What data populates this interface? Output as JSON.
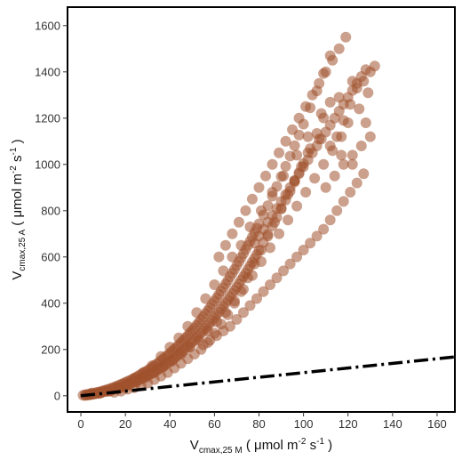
{
  "chart_data": {
    "type": "scatter",
    "xlabel": {
      "main": "V",
      "sub": "cmax,25 M",
      "open": " ( μmol m",
      "exp1": "-2",
      "mid": " s",
      "exp2": "-1",
      "close": " )"
    },
    "ylabel": {
      "main": "V",
      "sub": "cmax,25 A",
      "open": " ( μmol m",
      "exp1": "-2",
      "mid": " s",
      "exp2": "-1",
      "close": " )"
    },
    "xlim": [
      -6,
      168
    ],
    "ylim": [
      -70,
      1680
    ],
    "xticks": [
      "0",
      "20",
      "40",
      "60",
      "80",
      "100",
      "120",
      "140",
      "160"
    ],
    "yticks": [
      "0",
      "200",
      "400",
      "600",
      "800",
      "1000",
      "1200",
      "1400",
      "1600"
    ],
    "grid": false,
    "legend": "none",
    "point_color": "#a0522d",
    "point_opacity": 0.55,
    "reference_line": {
      "style": "dash-dot",
      "color": "#000000",
      "x": [
        0,
        168
      ],
      "y": [
        0,
        168
      ]
    },
    "points": [
      [
        1,
        2
      ],
      [
        2,
        1
      ],
      [
        2,
        5
      ],
      [
        3,
        6
      ],
      [
        3,
        3
      ],
      [
        4,
        8
      ],
      [
        4,
        4
      ],
      [
        5,
        9
      ],
      [
        5,
        12
      ],
      [
        6,
        11
      ],
      [
        6,
        7
      ],
      [
        7,
        14
      ],
      [
        7,
        10
      ],
      [
        8,
        16
      ],
      [
        8,
        12
      ],
      [
        9,
        18
      ],
      [
        9,
        13
      ],
      [
        10,
        22
      ],
      [
        10,
        17
      ],
      [
        11,
        24
      ],
      [
        11,
        18
      ],
      [
        12,
        27
      ],
      [
        12,
        20
      ],
      [
        13,
        30
      ],
      [
        13,
        22
      ],
      [
        14,
        34
      ],
      [
        14,
        25
      ],
      [
        15,
        37
      ],
      [
        15,
        28
      ],
      [
        16,
        41
      ],
      [
        16,
        31
      ],
      [
        17,
        45
      ],
      [
        17,
        34
      ],
      [
        18,
        49
      ],
      [
        18,
        37
      ],
      [
        19,
        53
      ],
      [
        19,
        40
      ],
      [
        20,
        58
      ],
      [
        20,
        44
      ],
      [
        21,
        62
      ],
      [
        21,
        48
      ],
      [
        22,
        66
      ],
      [
        22,
        52
      ],
      [
        23,
        71
      ],
      [
        23,
        56
      ],
      [
        24,
        76
      ],
      [
        24,
        60
      ],
      [
        25,
        81
      ],
      [
        25,
        64
      ],
      [
        26,
        87
      ],
      [
        26,
        68
      ],
      [
        27,
        92
      ],
      [
        27,
        72
      ],
      [
        28,
        98
      ],
      [
        28,
        77
      ],
      [
        29,
        104
      ],
      [
        29,
        82
      ],
      [
        30,
        110
      ],
      [
        30,
        87
      ],
      [
        31,
        116
      ],
      [
        31,
        92
      ],
      [
        32,
        123
      ],
      [
        32,
        97
      ],
      [
        33,
        130
      ],
      [
        33,
        103
      ],
      [
        34,
        137
      ],
      [
        34,
        109
      ],
      [
        35,
        144
      ],
      [
        35,
        115
      ],
      [
        36,
        152
      ],
      [
        36,
        121
      ],
      [
        37,
        160
      ],
      [
        37,
        127
      ],
      [
        38,
        168
      ],
      [
        38,
        134
      ],
      [
        39,
        176
      ],
      [
        39,
        141
      ],
      [
        40,
        184
      ],
      [
        40,
        148
      ],
      [
        41,
        193
      ],
      [
        41,
        155
      ],
      [
        42,
        202
      ],
      [
        42,
        162
      ],
      [
        43,
        211
      ],
      [
        43,
        170
      ],
      [
        44,
        220
      ],
      [
        44,
        178
      ],
      [
        45,
        230
      ],
      [
        45,
        186
      ],
      [
        46,
        240
      ],
      [
        46,
        194
      ],
      [
        47,
        250
      ],
      [
        47,
        203
      ],
      [
        48,
        260
      ],
      [
        48,
        212
      ],
      [
        49,
        271
      ],
      [
        49,
        221
      ],
      [
        50,
        282
      ],
      [
        50,
        230
      ],
      [
        51,
        293
      ],
      [
        51,
        240
      ],
      [
        52,
        305
      ],
      [
        52,
        250
      ],
      [
        53,
        317
      ],
      [
        53,
        260
      ],
      [
        54,
        329
      ],
      [
        54,
        270
      ],
      [
        55,
        342
      ],
      [
        55,
        281
      ],
      [
        56,
        355
      ],
      [
        56,
        292
      ],
      [
        57,
        368
      ],
      [
        57,
        303
      ],
      [
        58,
        381
      ],
      [
        58,
        314
      ],
      [
        59,
        395
      ],
      [
        59,
        326
      ],
      [
        60,
        409
      ],
      [
        60,
        338
      ],
      [
        61,
        423
      ],
      [
        61,
        350
      ],
      [
        62,
        438
      ],
      [
        62,
        362
      ],
      [
        63,
        452
      ],
      [
        63,
        375
      ],
      [
        64,
        467
      ],
      [
        64,
        388
      ],
      [
        65,
        483
      ],
      [
        65,
        401
      ],
      [
        66,
        498
      ],
      [
        66,
        414
      ],
      [
        67,
        514
      ],
      [
        67,
        428
      ],
      [
        68,
        530
      ],
      [
        68,
        442
      ],
      [
        69,
        546
      ],
      [
        69,
        456
      ],
      [
        70,
        563
      ],
      [
        70,
        470
      ],
      [
        71,
        580
      ],
      [
        71,
        485
      ],
      [
        72,
        597
      ],
      [
        72,
        500
      ],
      [
        73,
        614
      ],
      [
        73,
        515
      ],
      [
        74,
        632
      ],
      [
        74,
        530
      ],
      [
        75,
        650
      ],
      [
        75,
        546
      ],
      [
        76,
        668
      ],
      [
        76,
        562
      ],
      [
        77,
        686
      ],
      [
        77,
        578
      ],
      [
        78,
        705
      ],
      [
        78,
        594
      ],
      [
        79,
        724
      ],
      [
        79,
        611
      ],
      [
        80,
        743
      ],
      [
        80,
        628
      ],
      [
        82,
        782
      ],
      [
        82,
        662
      ],
      [
        84,
        822
      ],
      [
        84,
        698
      ],
      [
        86,
        863
      ],
      [
        86,
        734
      ],
      [
        88,
        905
      ],
      [
        88,
        771
      ],
      [
        90,
        948
      ],
      [
        90,
        808
      ],
      [
        92,
        992
      ],
      [
        92,
        846
      ],
      [
        94,
        1036
      ],
      [
        94,
        885
      ],
      [
        96,
        1081
      ],
      [
        96,
        924
      ],
      [
        98,
        1127
      ],
      [
        98,
        964
      ],
      [
        100,
        1174
      ],
      [
        100,
        1004
      ],
      [
        103,
        1245
      ],
      [
        103,
        1068
      ],
      [
        106,
        1318
      ],
      [
        106,
        1134
      ],
      [
        109,
        1393
      ],
      [
        109,
        1201
      ],
      [
        112,
        1470
      ],
      [
        112,
        1269
      ],
      [
        115,
        1120
      ],
      [
        118,
        1190
      ],
      [
        121,
        1260
      ],
      [
        124,
        1330
      ],
      [
        127,
        1360
      ],
      [
        130,
        1400
      ],
      [
        132,
        1425
      ],
      [
        129,
        1310
      ],
      [
        122,
        1360
      ],
      [
        116,
        1290
      ],
      [
        108,
        1220
      ],
      [
        102,
        1120
      ],
      [
        97,
        1040
      ],
      [
        91,
        950
      ],
      [
        86,
        880
      ],
      [
        81,
        800
      ],
      [
        76,
        730
      ],
      [
        72,
        650
      ],
      [
        68,
        600
      ],
      [
        64,
        540
      ],
      [
        60,
        480
      ],
      [
        56,
        420
      ],
      [
        52,
        360
      ],
      [
        48,
        300
      ],
      [
        44,
        250
      ],
      [
        40,
        210
      ],
      [
        36,
        170
      ],
      [
        32,
        130
      ],
      [
        28,
        100
      ],
      [
        24,
        75
      ],
      [
        20,
        50
      ],
      [
        16,
        35
      ],
      [
        12,
        20
      ],
      [
        8,
        10
      ],
      [
        4,
        5
      ],
      [
        55,
        220
      ],
      [
        58,
        240
      ],
      [
        61,
        260
      ],
      [
        64,
        280
      ],
      [
        67,
        300
      ],
      [
        70,
        330
      ],
      [
        73,
        360
      ],
      [
        76,
        390
      ],
      [
        79,
        420
      ],
      [
        82,
        450
      ],
      [
        85,
        480
      ],
      [
        88,
        510
      ],
      [
        91,
        540
      ],
      [
        94,
        570
      ],
      [
        97,
        600
      ],
      [
        100,
        630
      ],
      [
        103,
        660
      ],
      [
        106,
        690
      ],
      [
        109,
        720
      ],
      [
        112,
        760
      ],
      [
        115,
        800
      ],
      [
        118,
        840
      ],
      [
        121,
        880
      ],
      [
        124,
        920
      ],
      [
        127,
        960
      ],
      [
        122,
        1000
      ],
      [
        117,
        1040
      ],
      [
        112,
        1080
      ],
      [
        107,
        1110
      ],
      [
        102,
        1050
      ],
      [
        99,
        990
      ],
      [
        96,
        930
      ],
      [
        93,
        870
      ],
      [
        90,
        810
      ],
      [
        87,
        750
      ],
      [
        84,
        690
      ],
      [
        81,
        630
      ],
      [
        78,
        570
      ],
      [
        75,
        510
      ],
      [
        72,
        450
      ],
      [
        69,
        400
      ],
      [
        66,
        350
      ],
      [
        63,
        310
      ],
      [
        60,
        270
      ],
      [
        57,
        230
      ],
      [
        54,
        200
      ],
      [
        51,
        180
      ],
      [
        48,
        160
      ],
      [
        45,
        140
      ],
      [
        42,
        120
      ],
      [
        39,
        100
      ],
      [
        36,
        85
      ],
      [
        33,
        70
      ],
      [
        30,
        55
      ],
      [
        27,
        45
      ],
      [
        24,
        35
      ],
      [
        21,
        28
      ],
      [
        18,
        20
      ],
      [
        15,
        15
      ],
      [
        62,
        600
      ],
      [
        65,
        650
      ],
      [
        68,
        700
      ],
      [
        71,
        750
      ],
      [
        74,
        800
      ],
      [
        77,
        850
      ],
      [
        80,
        900
      ],
      [
        83,
        950
      ],
      [
        86,
        1000
      ],
      [
        89,
        1050
      ],
      [
        92,
        1100
      ],
      [
        95,
        1150
      ],
      [
        98,
        1200
      ],
      [
        101,
        1250
      ],
      [
        104,
        1300
      ],
      [
        107,
        1350
      ],
      [
        110,
        1400
      ],
      [
        113,
        1450
      ],
      [
        116,
        1500
      ],
      [
        119,
        1550
      ],
      [
        110,
        900
      ],
      [
        114,
        950
      ],
      [
        118,
        1000
      ],
      [
        122,
        1040
      ],
      [
        126,
        1080
      ],
      [
        130,
        1120
      ],
      [
        128,
        1180
      ],
      [
        125,
        1240
      ],
      [
        120,
        1180
      ],
      [
        117,
        1120
      ],
      [
        113,
        1060
      ],
      [
        109,
        1000
      ],
      [
        105,
        940
      ],
      [
        101,
        880
      ],
      [
        97,
        820
      ],
      [
        93,
        760
      ],
      [
        89,
        700
      ],
      [
        85,
        640
      ],
      [
        81,
        580
      ],
      [
        77,
        520
      ],
      [
        73,
        460
      ],
      [
        69,
        410
      ],
      [
        65,
        360
      ],
      [
        61,
        320
      ],
      [
        57,
        280
      ],
      [
        53,
        240
      ],
      [
        49,
        210
      ],
      [
        45,
        180
      ],
      [
        41,
        150
      ],
      [
        37,
        125
      ],
      [
        33,
        100
      ],
      [
        29,
        80
      ],
      [
        25,
        60
      ],
      [
        21,
        45
      ],
      [
        17,
        30
      ],
      [
        13,
        20
      ],
      [
        9,
        12
      ],
      [
        5,
        6
      ],
      [
        78,
        660
      ],
      [
        80,
        690
      ],
      [
        82,
        720
      ],
      [
        84,
        750
      ],
      [
        86,
        780
      ],
      [
        88,
        810
      ],
      [
        90,
        840
      ],
      [
        92,
        870
      ],
      [
        94,
        900
      ],
      [
        96,
        930
      ],
      [
        98,
        960
      ],
      [
        100,
        990
      ],
      [
        102,
        1020
      ],
      [
        104,
        1050
      ],
      [
        106,
        1080
      ],
      [
        108,
        1110
      ],
      [
        110,
        1140
      ],
      [
        112,
        1170
      ],
      [
        114,
        1200
      ],
      [
        116,
        1230
      ],
      [
        118,
        1260
      ],
      [
        120,
        1290
      ],
      [
        122,
        1320
      ],
      [
        124,
        1350
      ],
      [
        126,
        1380
      ],
      [
        128,
        1410
      ]
    ]
  }
}
